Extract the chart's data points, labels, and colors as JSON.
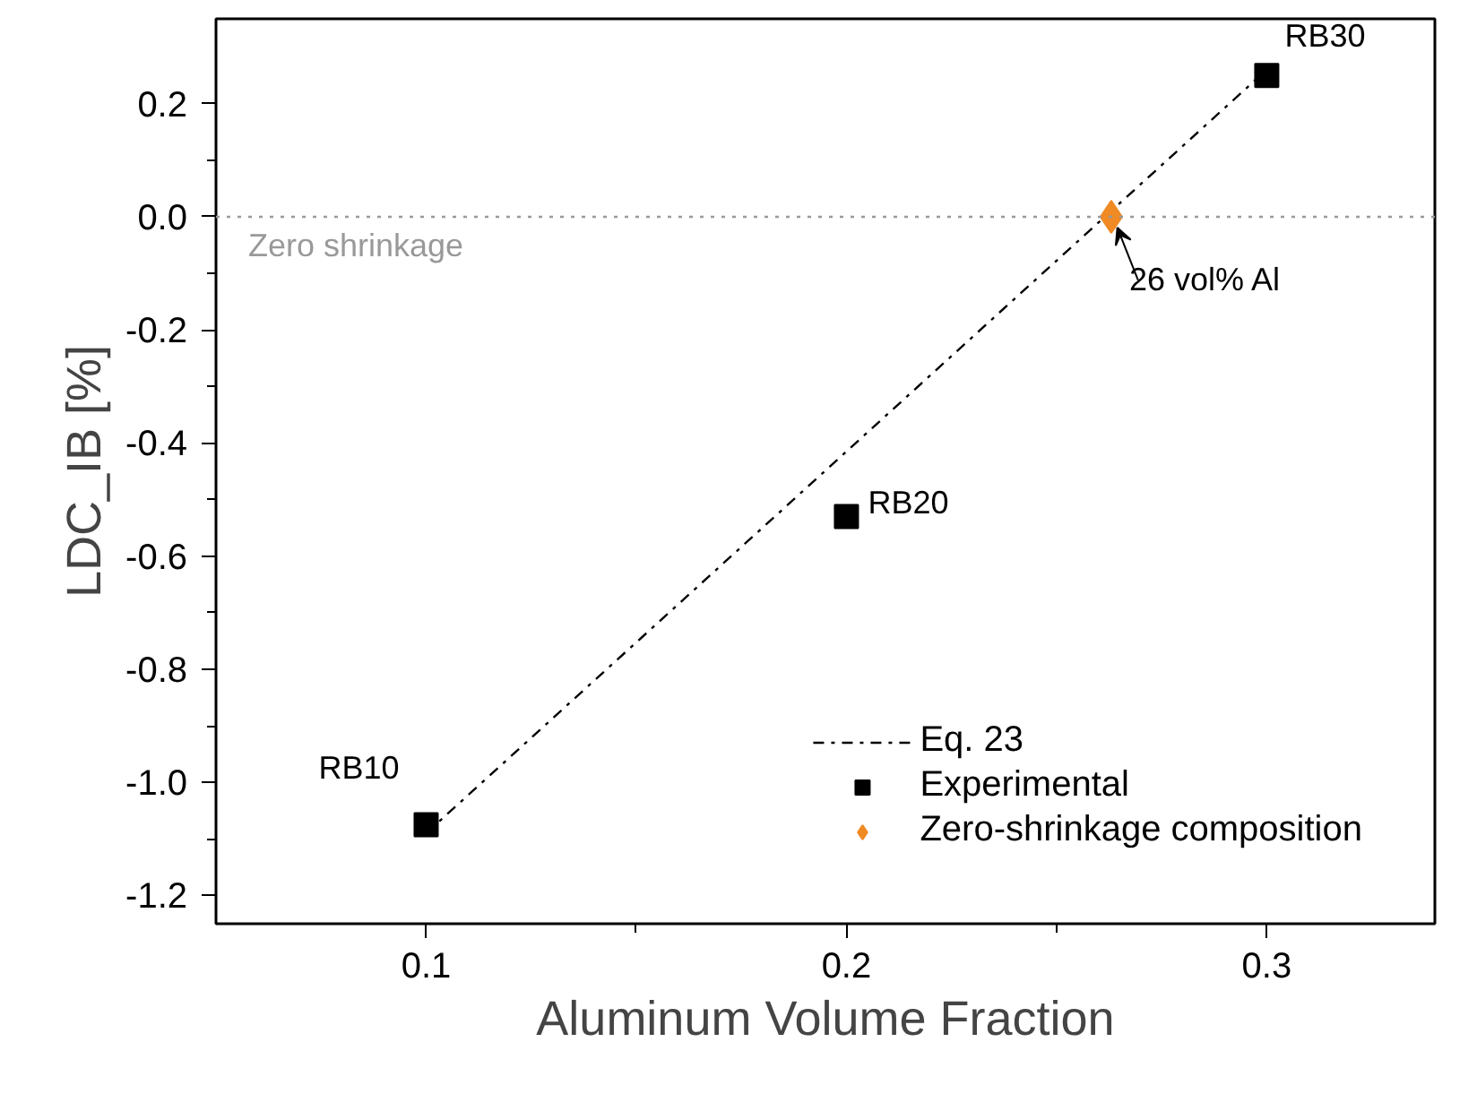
{
  "chart_data": {
    "type": "scatter",
    "xlabel": "Aluminum Volume Fraction",
    "ylabel": "LDC_IB [%]",
    "xlim": [
      0.05,
      0.34
    ],
    "ylim": [
      -1.25,
      0.35
    ],
    "xticks": [
      0.1,
      0.2,
      0.3
    ],
    "yticks": [
      {
        "value": -1.2,
        "label": "-1.2"
      },
      {
        "value": -1.0,
        "label": "-1.0"
      },
      -0.8,
      -0.6,
      -0.4,
      -0.2,
      {
        "value": 0.0,
        "label": "0.0"
      },
      0.2
    ],
    "series": [
      {
        "name": "Eq. 23",
        "type": "line",
        "color": "#000000",
        "line_style": "dashdot",
        "x": [
          0.1,
          0.3
        ],
        "values": [
          -1.09,
          0.26
        ]
      },
      {
        "name": "Experimental",
        "color": "#000000",
        "marker": "square",
        "x": [
          0.1,
          0.2,
          0.3
        ],
        "values": [
          -1.075,
          -0.53,
          0.25
        ]
      },
      {
        "name": "Zero-shrinkage composition",
        "color": "#f08a24",
        "marker": "diamond",
        "x": [
          0.263
        ],
        "values": [
          0.0
        ]
      }
    ],
    "ref_lines": [
      {
        "axis": "y",
        "value": 0.0,
        "label": "Zero shrinkage",
        "color": "#999999",
        "line_style": "dotted"
      }
    ],
    "annotations": [
      {
        "text": "RB10",
        "x": 0.1,
        "y": -1.075
      },
      {
        "text": "RB20",
        "x": 0.2,
        "y": -0.53
      },
      {
        "text": "RB30",
        "x": 0.3,
        "y": 0.25
      },
      {
        "text": "26 vol% Al",
        "x": 0.263,
        "y": 0.0
      }
    ],
    "grid": false,
    "legend": "bottom right"
  }
}
